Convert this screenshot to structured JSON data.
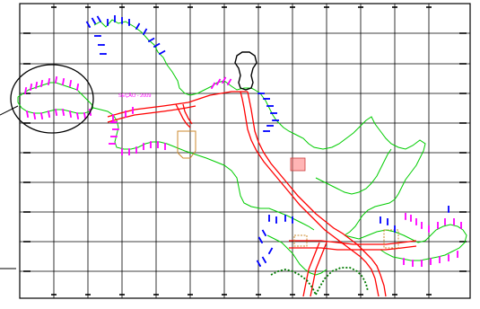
{
  "drawing": {
    "annotation_label": "SEÇÃO - 2009",
    "colors": {
      "background": "#ffffff",
      "grid": "#000000",
      "boundary": "#00cc00",
      "road": "#ff0000",
      "road_fill": "#ff6b6b",
      "survey_points": "#ff00ff",
      "survey_points_alt": "#0000ff",
      "parcel": "#cc8a2e",
      "island_outline": "#000000",
      "coastline_dash": "#007a00",
      "annotation_circle": "#000000"
    },
    "icons": {
      "leader": "leader-line",
      "callout": "callout-circle"
    }
  }
}
